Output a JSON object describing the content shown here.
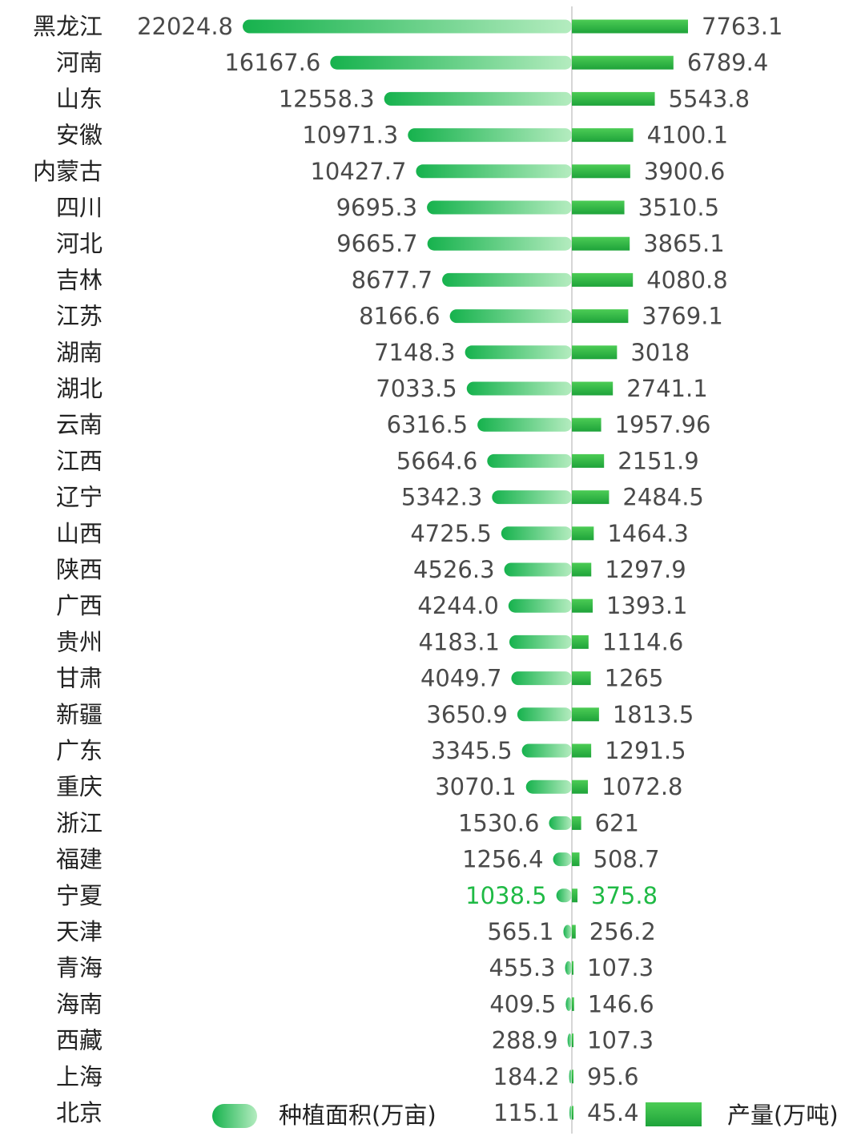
{
  "colors": {
    "area_light": "#b4ecbf",
    "area_dark": "#16b24d",
    "output_light": "#4ccc55",
    "output_dark": "#1ea33a",
    "highlight_label": "#1fba45",
    "divider": "#c8c8c8"
  },
  "chart_data": {
    "type": "bar",
    "title": "",
    "layout": "butterfly (mirrored horizontal bars)",
    "categories": [
      "黑龙江",
      "河南",
      "山东",
      "安徽",
      "内蒙古",
      "四川",
      "河北",
      "吉林",
      "江苏",
      "湖南",
      "湖北",
      "云南",
      "江西",
      "辽宁",
      "山西",
      "陕西",
      "广西",
      "贵州",
      "甘肃",
      "新疆",
      "广东",
      "重庆",
      "浙江",
      "福建",
      "宁夏",
      "天津",
      "青海",
      "海南",
      "西藏",
      "上海",
      "北京"
    ],
    "series": [
      {
        "name": "种植面积(万亩)",
        "side": "left",
        "labels": [
          "22024.8",
          "16167.6",
          "12558.3",
          "10971.3",
          "10427.7",
          "9695.3",
          "9665.7",
          "8677.7",
          "8166.6",
          "7148.3",
          "7033.5",
          "6316.5",
          "5664.6",
          "5342.3",
          "4725.5",
          "4526.3",
          "4244.0",
          "4183.1",
          "4049.7",
          "3650.9",
          "3345.5",
          "3070.1",
          "1530.6",
          "1256.4",
          "1038.5",
          "565.1",
          "455.3",
          "409.5",
          "288.9",
          "184.2",
          "115.1"
        ],
        "values": [
          22024.8,
          16167.6,
          12558.3,
          10971.3,
          10427.7,
          9695.3,
          9665.7,
          8677.7,
          8166.6,
          7148.3,
          7033.5,
          6316.5,
          5664.6,
          5342.3,
          4725.5,
          4526.3,
          4244.0,
          4183.1,
          4049.7,
          3650.9,
          3345.5,
          3070.1,
          1530.6,
          1256.4,
          1038.5,
          565.1,
          455.3,
          409.5,
          288.9,
          184.2,
          115.1
        ]
      },
      {
        "name": "产量(万吨)",
        "side": "right",
        "labels": [
          "7763.1",
          "6789.4",
          "5543.8",
          "4100.1",
          "3900.6",
          "3510.5",
          "3865.1",
          "4080.8",
          "3769.1",
          "3018",
          "2741.1",
          "1957.96",
          "2151.9",
          "2484.5",
          "1464.3",
          "1297.9",
          "1393.1",
          "1114.6",
          "1265",
          "1813.5",
          "1291.5",
          "1072.8",
          "621",
          "508.7",
          "375.8",
          "256.2",
          "107.3",
          "146.6",
          "107.3",
          "95.6",
          "45.4"
        ],
        "values": [
          7763.1,
          6789.4,
          5543.8,
          4100.1,
          3900.6,
          3510.5,
          3865.1,
          4080.8,
          3769.1,
          3018,
          2741.1,
          1957.96,
          2151.9,
          2484.5,
          1464.3,
          1297.9,
          1393.1,
          1114.6,
          1265,
          1813.5,
          1291.5,
          1072.8,
          621,
          508.7,
          375.8,
          256.2,
          107.3,
          146.6,
          107.3,
          95.6,
          45.4
        ]
      }
    ],
    "highlight_category": "宁夏",
    "legend": {
      "placement": "bottom",
      "items": [
        "种植面积(万亩)",
        "产量(万吨)"
      ]
    },
    "grid": false
  }
}
